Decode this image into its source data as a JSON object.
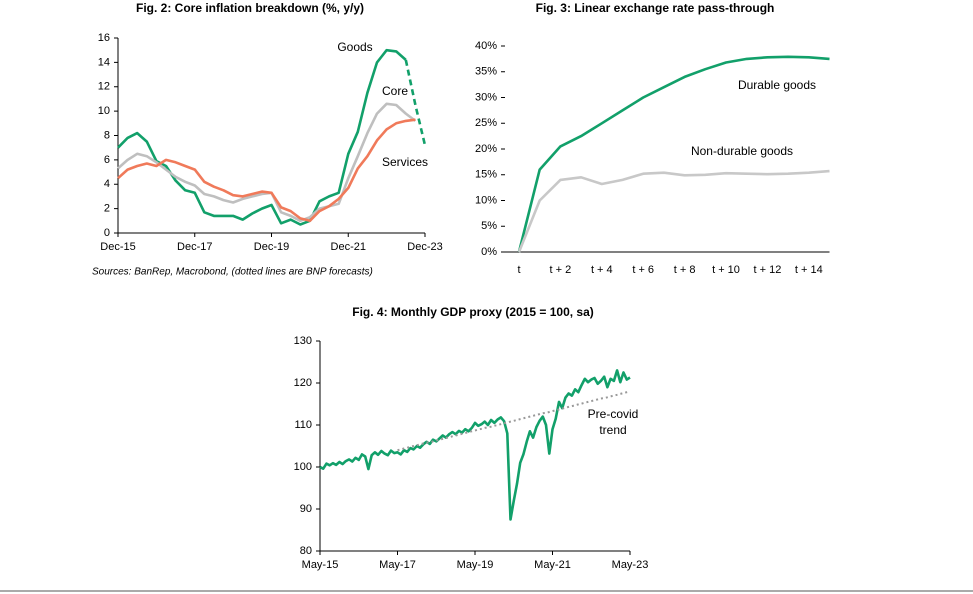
{
  "chart_data": [
    {
      "type": "line",
      "title": "Fig. 2: Core inflation breakdown (%, y/y)",
      "source": "Sources: BanRep, Macrobond, (dotted lines are BNP forecasts)",
      "categories": [
        "Dec-15",
        null,
        null,
        null,
        null,
        null,
        null,
        null,
        "Dec-17",
        null,
        null,
        null,
        null,
        null,
        null,
        null,
        "Dec-19",
        null,
        null,
        null,
        null,
        null,
        null,
        null,
        "Dec-21",
        null,
        null,
        null,
        null,
        null,
        null,
        null,
        "Dec-23"
      ],
      "series": [
        {
          "name": "Goods",
          "color": "#12a06a",
          "dashed_from": 30,
          "values": [
            7.0,
            7.8,
            8.2,
            7.5,
            5.9,
            5.5,
            4.3,
            3.5,
            3.3,
            1.7,
            1.4,
            1.4,
            1.4,
            1.1,
            1.6,
            2.0,
            2.3,
            0.8,
            1.1,
            0.7,
            1.0,
            2.6,
            3.0,
            3.3,
            6.5,
            8.3,
            11.5,
            14.0,
            15.0,
            14.9,
            14.2,
            10.5,
            7.2
          ]
        },
        {
          "name": "Core",
          "color": "#bfbfbf",
          "values": [
            5.3,
            6.0,
            6.5,
            6.3,
            5.8,
            5.2,
            4.6,
            4.2,
            3.9,
            3.2,
            3.0,
            2.7,
            2.5,
            2.8,
            3.0,
            3.2,
            3.3,
            1.7,
            1.4,
            1.0,
            1.3,
            2.0,
            2.2,
            2.4,
            4.5,
            6.3,
            8.2,
            9.8,
            10.6,
            10.5,
            9.8,
            9.2,
            null
          ]
        },
        {
          "name": "Services",
          "color": "#f07a5a",
          "values": [
            4.5,
            5.2,
            5.5,
            5.7,
            5.5,
            6.0,
            5.8,
            5.5,
            5.2,
            4.2,
            3.8,
            3.5,
            3.1,
            3.0,
            3.2,
            3.4,
            3.3,
            2.1,
            1.8,
            1.2,
            1.0,
            1.8,
            2.2,
            2.8,
            3.7,
            5.3,
            6.3,
            7.6,
            8.5,
            9.0,
            9.2,
            9.3,
            null
          ]
        }
      ],
      "ylim": [
        0,
        16
      ],
      "yticks": [
        0,
        2,
        4,
        6,
        8,
        10,
        12,
        14,
        16
      ]
    },
    {
      "type": "line",
      "title": "Fig. 3: Linear exchange rate pass-through",
      "categories": [
        "t",
        null,
        "t + 2",
        null,
        "t + 4",
        null,
        "t + 6",
        null,
        "t + 8",
        null,
        "t + 10",
        null,
        "t + 12",
        null,
        "t + 14",
        null
      ],
      "series": [
        {
          "name": "Durable goods",
          "color": "#12a06a",
          "values": [
            0,
            16,
            20.5,
            22.5,
            25,
            27.5,
            30,
            32,
            34,
            35.5,
            36.8,
            37.5,
            37.8,
            37.9,
            37.8,
            37.5
          ]
        },
        {
          "name": "Non-durable goods",
          "color": "#c8c8c8",
          "values": [
            0,
            10,
            14,
            14.5,
            13.2,
            14,
            15.2,
            15.4,
            14.9,
            15,
            15.3,
            15.2,
            15.1,
            15.2,
            15.4,
            15.7
          ]
        }
      ],
      "ylim": [
        0,
        40
      ],
      "yticks": [
        {
          "value": 0,
          "label": "0%"
        },
        {
          "value": 5,
          "label": "5%"
        },
        {
          "value": 10,
          "label": "10%"
        },
        {
          "value": 15,
          "label": "15%"
        },
        {
          "value": 20,
          "label": "20%"
        },
        {
          "value": 25,
          "label": "25%"
        },
        {
          "value": 30,
          "label": "30%"
        },
        {
          "value": 35,
          "label": "35%"
        },
        {
          "value": 40,
          "label": "40%"
        }
      ]
    },
    {
      "type": "line",
      "title": "Fig. 4: Monthly GDP proxy (2015 = 100, sa)",
      "categories": [
        "May-15",
        null,
        null,
        null,
        null,
        null,
        null,
        null,
        null,
        null,
        null,
        null,
        null,
        null,
        null,
        null,
        null,
        null,
        null,
        null,
        null,
        null,
        null,
        null,
        "May-17",
        null,
        null,
        null,
        null,
        null,
        null,
        null,
        null,
        null,
        null,
        null,
        null,
        null,
        null,
        null,
        null,
        null,
        null,
        null,
        null,
        null,
        null,
        null,
        "May-19",
        null,
        null,
        null,
        null,
        null,
        null,
        null,
        null,
        null,
        null,
        null,
        null,
        null,
        null,
        null,
        null,
        null,
        null,
        null,
        null,
        null,
        null,
        null,
        "May-21",
        null,
        null,
        null,
        null,
        null,
        null,
        null,
        null,
        null,
        null,
        null,
        null,
        null,
        null,
        null,
        null,
        null,
        null,
        null,
        null,
        null,
        null,
        null,
        "May-23"
      ],
      "series": [
        {
          "name": null,
          "color": "#12a06a",
          "values": [
            100,
            99.6,
            100.8,
            100.4,
            100.9,
            100.5,
            101.2,
            100.7,
            101.4,
            101.8,
            101.3,
            102.2,
            101.7,
            103.0,
            102.5,
            99.5,
            102.8,
            103.5,
            102.9,
            103.8,
            103.2,
            102.8,
            103.9,
            103.3,
            103.5,
            103.0,
            104.0,
            103.6,
            104.5,
            104.2,
            105.0,
            104.6,
            105.4,
            106.0,
            105.5,
            106.5,
            106.1,
            106.8,
            107.5,
            107.0,
            107.8,
            108.3,
            107.8,
            108.6,
            108.2,
            109.0,
            108.5,
            109.3,
            110.5,
            109.8,
            110.2,
            110.8,
            110.0,
            111.2,
            110.5,
            111.3,
            111.8,
            110.9,
            108.0,
            87.5,
            92.0,
            96.0,
            101.0,
            103.0,
            106.0,
            108.5,
            107.0,
            109.5,
            111.0,
            112.0,
            110.0,
            103.2,
            109.0,
            111.5,
            115.5,
            114.0,
            116.5,
            117.5,
            117.0,
            118.5,
            117.8,
            119.5,
            121.0,
            120.2,
            120.8,
            121.2,
            119.8,
            120.5,
            121.5,
            119.0,
            121.0,
            120.5,
            123.0,
            120.2,
            122.5,
            120.8,
            121.3
          ]
        },
        {
          "name": "Pre-covid trend",
          "color": "#999999",
          "style": "dotted",
          "values": [
            null,
            null,
            null,
            null,
            null,
            null,
            null,
            null,
            null,
            null,
            null,
            null,
            null,
            null,
            null,
            null,
            null,
            null,
            null,
            null,
            null,
            null,
            null,
            null,
            104.0,
            104.2,
            104.4,
            104.6,
            104.8,
            105.0,
            105.2,
            105.4,
            105.6,
            105.8,
            105.9,
            106.1,
            106.3,
            106.5,
            106.7,
            106.9,
            107.1,
            107.3,
            107.5,
            107.7,
            107.9,
            108.1,
            108.3,
            108.5,
            108.7,
            108.9,
            109.1,
            109.3,
            109.4,
            109.6,
            109.8,
            110.0,
            110.2,
            110.4,
            110.6,
            110.8,
            111.0,
            111.2,
            111.4,
            111.6,
            111.8,
            112.0,
            112.2,
            112.4,
            112.6,
            112.8,
            112.9,
            113.1,
            113.3,
            113.5,
            113.7,
            113.9,
            114.1,
            114.3,
            114.5,
            114.7,
            114.9,
            115.1,
            115.3,
            115.5,
            115.7,
            115.9,
            116.1,
            116.3,
            116.4,
            116.6,
            116.8,
            117.0,
            117.2,
            117.4,
            117.6,
            117.8,
            118.0
          ]
        }
      ],
      "ylim": [
        80,
        130
      ],
      "yticks": [
        80,
        90,
        100,
        110,
        120,
        130
      ]
    }
  ]
}
